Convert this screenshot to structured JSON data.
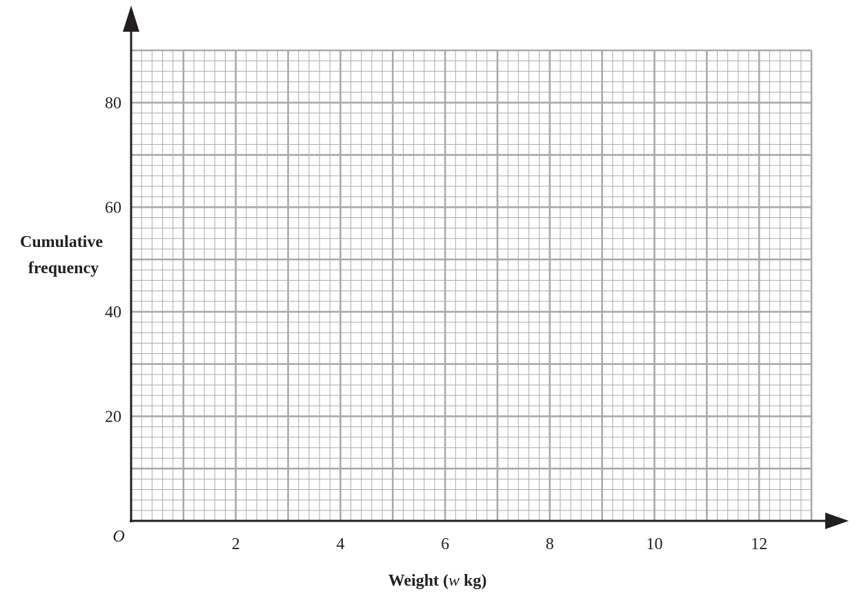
{
  "chart_data": {
    "type": "line",
    "title": "",
    "xlabel": {
      "before": "Weight (",
      "variable": "w",
      "after": " kg)"
    },
    "ylabel": [
      "Cumulative",
      "frequency"
    ],
    "origin_label": "O",
    "x": {
      "min": 0,
      "max": 13,
      "major_step": 1,
      "minor_per_major": 5,
      "tick_values": [
        2,
        4,
        6,
        8,
        10,
        12
      ],
      "tick_labels": [
        "2",
        "4",
        "6",
        "8",
        "10",
        "12"
      ]
    },
    "y": {
      "min": 0,
      "max": 90,
      "major_step": 10,
      "minor_per_major": 5,
      "tick_values": [
        20,
        40,
        60,
        80
      ],
      "tick_labels": [
        "20",
        "40",
        "60",
        "80"
      ]
    },
    "grid": true,
    "series": [],
    "colors": {
      "axis": "#231f20",
      "grid_major": "#a7a9ac",
      "grid_minor": "#a7a9ac"
    }
  }
}
